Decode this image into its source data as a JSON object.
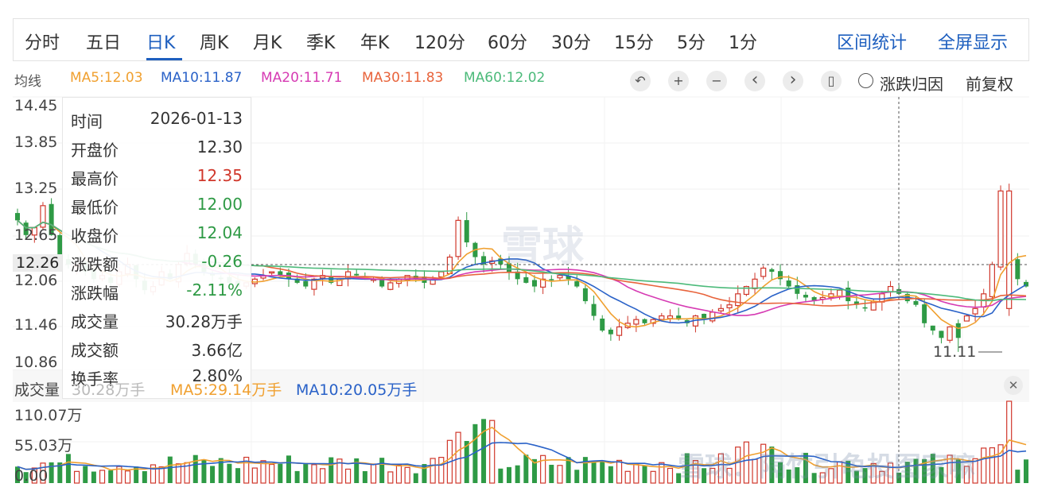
{
  "tabs": [
    {
      "label": "分时",
      "active": false
    },
    {
      "label": "五日",
      "active": false
    },
    {
      "label": "日K",
      "active": true
    },
    {
      "label": "周K",
      "active": false
    },
    {
      "label": "月K",
      "active": false
    },
    {
      "label": "季K",
      "active": false
    },
    {
      "label": "年K",
      "active": false
    },
    {
      "label": "120分",
      "active": false
    },
    {
      "label": "60分",
      "active": false
    },
    {
      "label": "30分",
      "active": false
    },
    {
      "label": "15分",
      "active": false
    },
    {
      "label": "5分",
      "active": false
    },
    {
      "label": "1分",
      "active": false
    }
  ],
  "right_tabs": {
    "interval_stats": "区间统计",
    "fullscreen": "全屏显示"
  },
  "ma_bar": {
    "label": "均线",
    "items": [
      {
        "text": "MA5:12.03",
        "color": "#f0a030"
      },
      {
        "text": "MA10:11.87",
        "color": "#2a62c8"
      },
      {
        "text": "MA20:11.71",
        "color": "#d63bb3"
      },
      {
        "text": "MA30:11.83",
        "color": "#e8643c"
      },
      {
        "text": "MA60:12.02",
        "color": "#4cba7a"
      }
    ]
  },
  "controls": {
    "undo": "↶",
    "zoom_in": "+",
    "zoom_out": "−",
    "prev": "‹",
    "next": "›",
    "candle": "▯"
  },
  "options": {
    "reset_label": "涨跌归因",
    "adjust_label": "前复权"
  },
  "price_axis": [
    "14.45",
    "13.85",
    "13.25",
    "12.65",
    "12.06",
    "11.46",
    "10.86"
  ],
  "crosshair_price": "12.26",
  "low_marker": "11.11",
  "tooltip": [
    {
      "k": "时间",
      "v": "2026-01-13",
      "color": "#333333"
    },
    {
      "k": "开盘价",
      "v": "12.30",
      "color": "#333333"
    },
    {
      "k": "最高价",
      "v": "12.35",
      "color": "#d0372b"
    },
    {
      "k": "最低价",
      "v": "12.00",
      "color": "#2e9a45"
    },
    {
      "k": "收盘价",
      "v": "12.04",
      "color": "#2e9a45"
    },
    {
      "k": "涨跌额",
      "v": "-0.26",
      "color": "#2e9a45"
    },
    {
      "k": "涨跌幅",
      "v": "-2.11%",
      "color": "#2e9a45"
    },
    {
      "k": "成交量",
      "v": "30.28万手",
      "color": "#333333"
    },
    {
      "k": "成交额",
      "v": "3.66亿",
      "color": "#333333"
    },
    {
      "k": "换手率",
      "v": "2.80%",
      "color": "#333333"
    }
  ],
  "volume_bar": {
    "label": "成交量",
    "vol": "30.28万手",
    "ma5": "MA5:29.14万手",
    "ma10": "MA10:20.05万手"
  },
  "volume_axis": [
    "110.07万",
    "55.03万",
    "0.00"
  ],
  "watermark": "雪球",
  "watermark2": "雪球：隔竹引龟投图家嘛",
  "colors": {
    "up": "#d0372b",
    "down": "#2e9a45",
    "accent": "#1e5fbf"
  }
}
